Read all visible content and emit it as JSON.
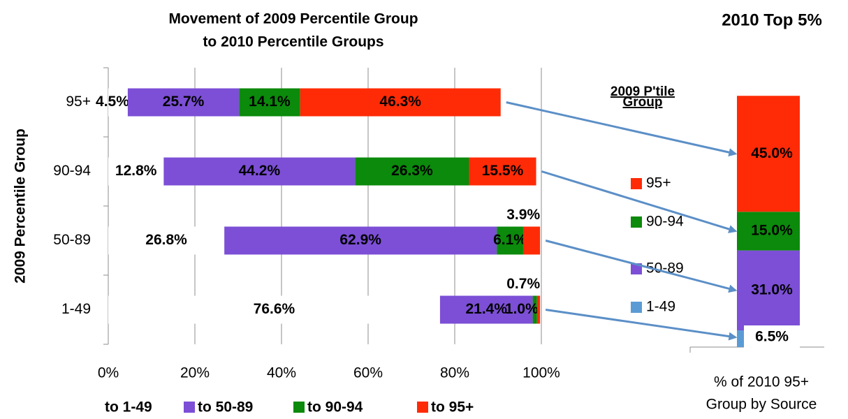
{
  "chart_data": [
    {
      "type": "bar",
      "orientation": "horizontal",
      "stacked": true,
      "title": [
        "Movement of 2009 Percentile Group",
        "to 2010 Percentile Groups"
      ],
      "ylabel": "2009 Percentile Group",
      "categories": [
        "95+",
        "90-94",
        "50-89",
        "1-49"
      ],
      "series": [
        {
          "name": "to 1-49",
          "color": "#ffffff",
          "values": [
            4.5,
            12.8,
            26.8,
            76.6
          ],
          "value_labels": [
            "4.5%",
            "12.8%",
            "26.8%",
            "76.6%"
          ]
        },
        {
          "name": "to 50-89",
          "color": "#7c4fd6",
          "values": [
            25.7,
            44.2,
            62.9,
            21.4
          ],
          "value_labels": [
            "25.7%",
            "44.2%",
            "62.9%",
            "21.4%"
          ]
        },
        {
          "name": "to 90-94",
          "color": "#0b8a0b",
          "values": [
            14.1,
            26.3,
            6.1,
            1.0
          ],
          "value_labels": [
            "14.1%",
            "26.3%",
            "6.1%",
            "1.0%"
          ]
        },
        {
          "name": "to 95+",
          "color": "#ff2b06",
          "values": [
            46.3,
            15.5,
            3.9,
            0.7
          ],
          "value_labels": [
            "46.3%",
            "15.5%",
            "3.9%",
            "0.7%"
          ]
        }
      ],
      "xlim": [
        0,
        100
      ],
      "xticks": [
        {
          "value": 0,
          "label": "0%"
        },
        {
          "value": 20,
          "label": "20%"
        },
        {
          "value": 40,
          "label": "40%"
        },
        {
          "value": 60,
          "label": "60%"
        },
        {
          "value": 80,
          "label": "80%"
        },
        {
          "value": 100,
          "label": "100%"
        }
      ],
      "grid": true,
      "legend": "bottom"
    },
    {
      "type": "bar",
      "orientation": "vertical",
      "stacked": true,
      "title": "2010 Top 5%",
      "legend_title": "2009 P'tile Group",
      "xlabel": [
        "% of 2010 95+",
        "Group by Source"
      ],
      "categories": [
        null
      ],
      "series": [
        {
          "name": "1-49",
          "color": "#5b9bd5",
          "values": [
            6.5
          ],
          "value_labels": [
            "6.5%"
          ]
        },
        {
          "name": "50-89",
          "color": "#7c4fd6",
          "values": [
            31
          ],
          "value_labels": [
            "31.0%"
          ]
        },
        {
          "name": "90-94",
          "color": "#0b8a0b",
          "values": [
            15
          ],
          "value_labels": [
            "15.0%"
          ]
        },
        {
          "name": "95+",
          "color": "#ff2b06",
          "values": [
            45
          ],
          "value_labels": [
            "45.0%"
          ]
        }
      ],
      "ylim": [
        0,
        100
      ],
      "legend": "left"
    }
  ]
}
